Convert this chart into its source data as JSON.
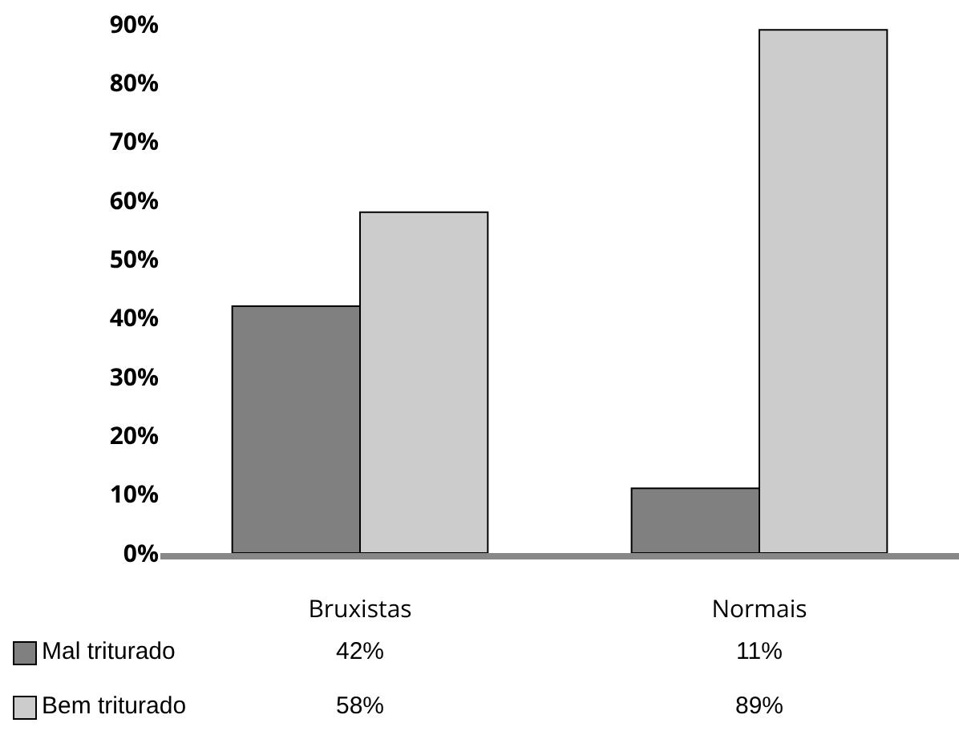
{
  "chart_data": {
    "type": "bar",
    "categories": [
      "Bruxistas",
      "Normais"
    ],
    "series": [
      {
        "name": "Mal triturado",
        "color": "#808080",
        "values": [
          42,
          11
        ],
        "value_labels": [
          "42%",
          "11%"
        ]
      },
      {
        "name": "Bem triturado",
        "color": "#cccccc",
        "values": [
          58,
          89
        ],
        "value_labels": [
          "58%",
          "89%"
        ]
      }
    ],
    "ylim": [
      0,
      90
    ],
    "yticks": [
      {
        "value": 0,
        "label": "0%"
      },
      {
        "value": 10,
        "label": "10%"
      },
      {
        "value": 20,
        "label": "20%"
      },
      {
        "value": 30,
        "label": "30%"
      },
      {
        "value": 40,
        "label": "40%"
      },
      {
        "value": 50,
        "label": "50%"
      },
      {
        "value": 60,
        "label": "60%"
      },
      {
        "value": 70,
        "label": "70%"
      },
      {
        "value": 80,
        "label": "80%"
      },
      {
        "value": 90,
        "label": "90%"
      }
    ],
    "grid": false,
    "legend": "bottom"
  }
}
